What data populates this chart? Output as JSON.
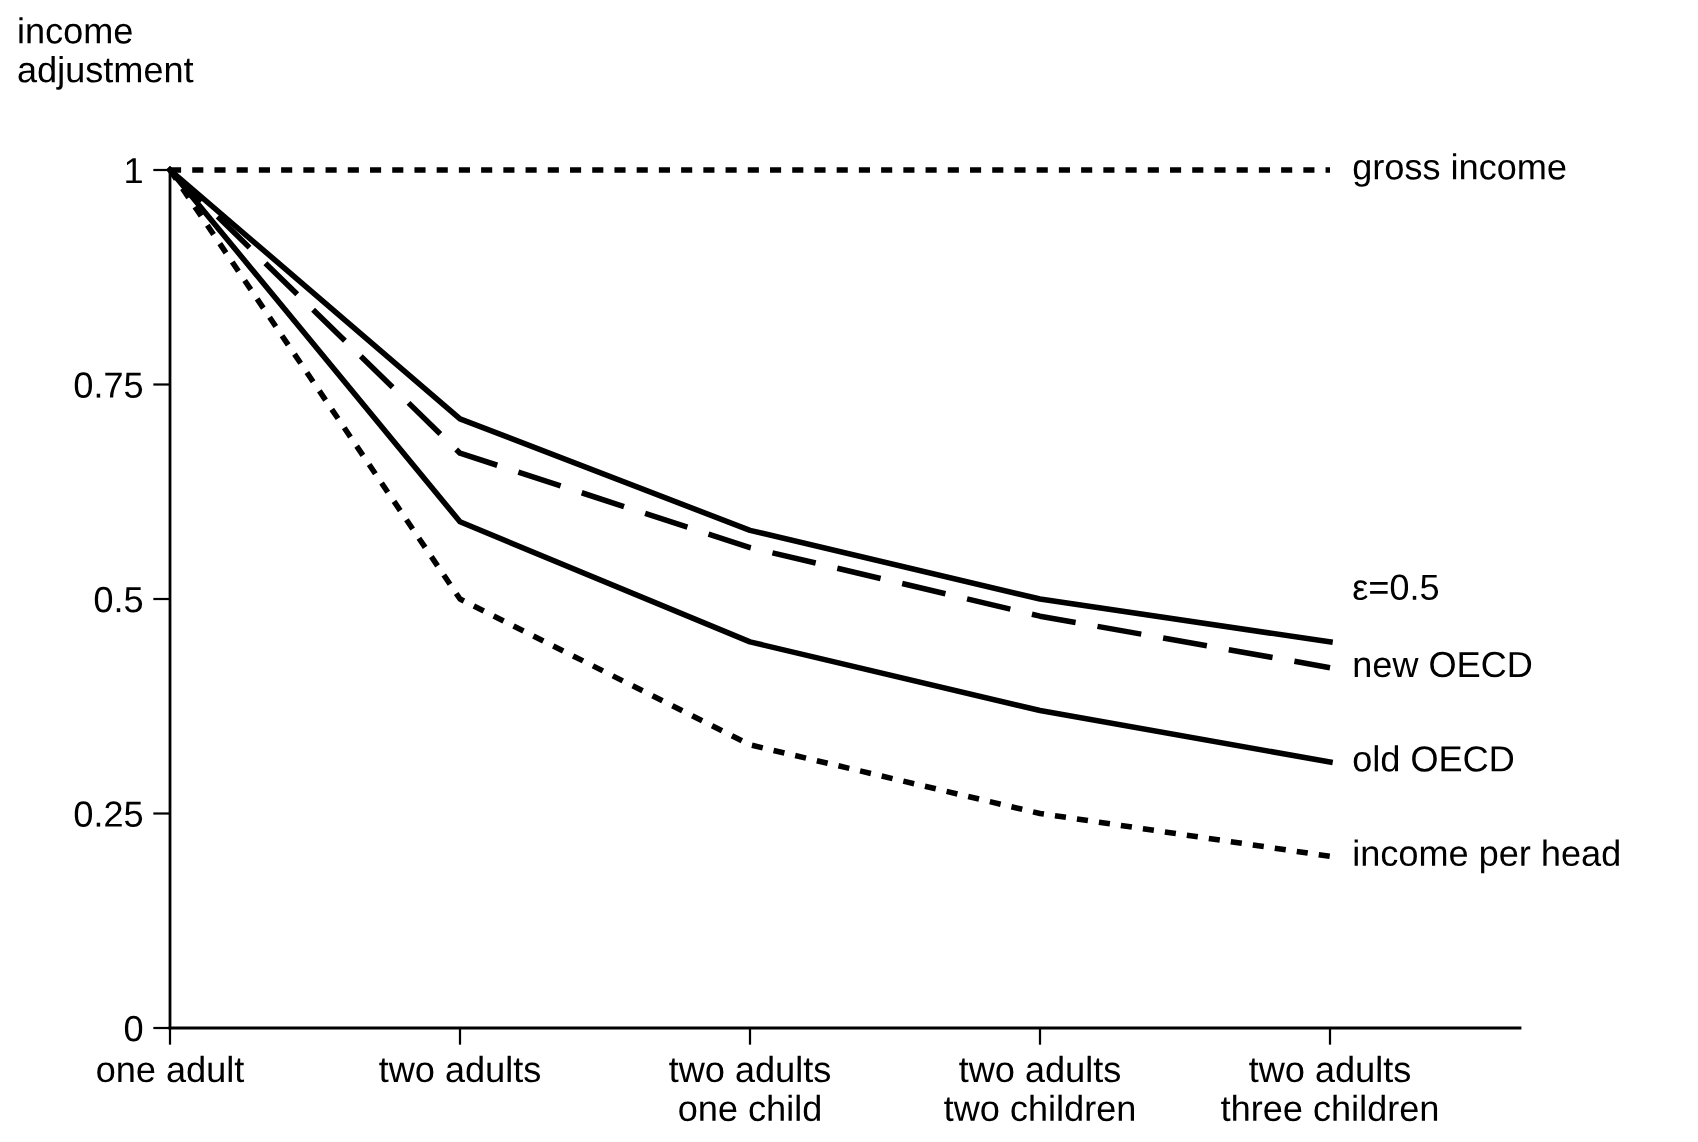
{
  "chart_data": {
    "type": "line",
    "ylabel": "income\nadjustment",
    "categories": [
      "one adult",
      "two adults",
      "two adults\none child",
      "two adults\ntwo children",
      "two adults\nthree children"
    ],
    "ylim": [
      0,
      1
    ],
    "yticks": [
      0,
      0.25,
      0.5,
      0.75,
      1
    ],
    "grid": false,
    "legend": false,
    "marker": "none",
    "series": [
      {
        "name": "gross income",
        "color": "#000000",
        "line_style": "dotted",
        "values": [
          1,
          1,
          1,
          1,
          1
        ]
      },
      {
        "name": "ε=0.5",
        "color": "#000000",
        "line_style": "solid",
        "values": [
          1,
          0.71,
          0.58,
          0.5,
          0.45
        ]
      },
      {
        "name": "new OECD",
        "color": "#000000",
        "line_style": "dashed",
        "values": [
          1,
          0.67,
          0.56,
          0.48,
          0.42
        ]
      },
      {
        "name": "old OECD",
        "color": "#000000",
        "line_style": "solid",
        "values": [
          1,
          0.59,
          0.45,
          0.37,
          0.31
        ]
      },
      {
        "name": "income per head",
        "color": "#000000",
        "line_style": "dotted",
        "values": [
          1,
          0.5,
          0.33,
          0.25,
          0.2
        ]
      }
    ]
  }
}
